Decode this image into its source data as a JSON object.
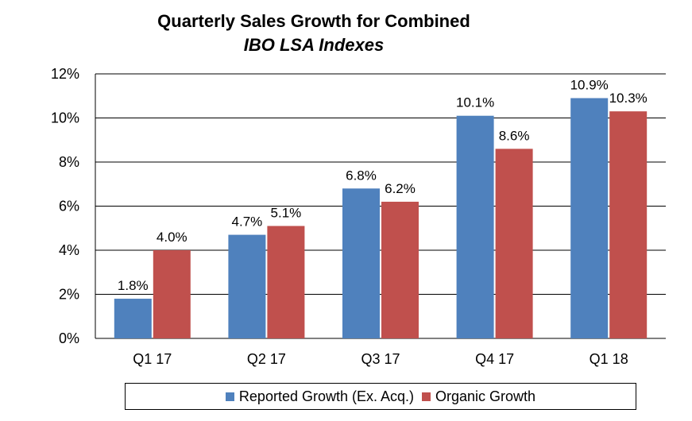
{
  "chart_data": {
    "type": "bar",
    "title": "Quarterly Sales Growth for Combined",
    "subtitle": "IBO LSA Indexes",
    "categories": [
      "Q1 17",
      "Q2 17",
      "Q3 17",
      "Q4 17",
      "Q1 18"
    ],
    "series": [
      {
        "name": "Reported Growth (Ex. Acq.)",
        "color": "#4F81BD",
        "values": [
          1.8,
          4.7,
          6.8,
          10.1,
          10.9
        ],
        "labels": [
          "1.8%",
          "4.7%",
          "6.8%",
          "10.1%",
          "10.9%"
        ]
      },
      {
        "name": "Organic Growth",
        "color": "#C0504D",
        "values": [
          4.0,
          5.1,
          6.2,
          8.6,
          10.3
        ],
        "labels": [
          "4.0%",
          "5.1%",
          "6.2%",
          "8.6%",
          "10.3%"
        ]
      }
    ],
    "ylim": [
      0,
      12
    ],
    "yticks": [
      0,
      2,
      4,
      6,
      8,
      10,
      12
    ],
    "ytick_labels": [
      "0%",
      "2%",
      "4%",
      "6%",
      "8%",
      "10%",
      "12%"
    ],
    "grid": true,
    "legend": "bottom"
  }
}
